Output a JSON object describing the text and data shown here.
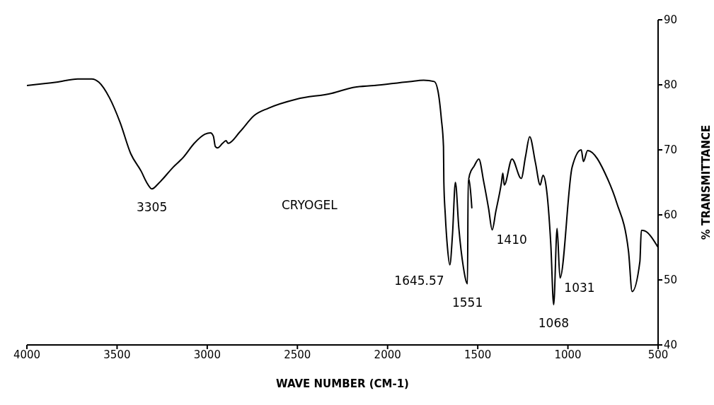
{
  "chart_data": {
    "type": "line",
    "xlabel": "WAVE NUMBER (CM-1)",
    "ylabel": "% TRANSMITTANCE",
    "xlim": [
      4000,
      500
    ],
    "xticks": [
      4000,
      3500,
      3000,
      2500,
      2000,
      1500,
      1000,
      500
    ],
    "ylim": [
      40,
      90
    ],
    "yticks": [
      40,
      50,
      60,
      70,
      80,
      90
    ],
    "grid": false,
    "legend": false,
    "marker": "none",
    "line_style": "solid",
    "series": [
      {
        "color": "#000000",
        "x": [
          4000,
          3836,
          3718,
          3640,
          3601,
          3542,
          3483,
          3424,
          3366,
          3334,
          3307,
          3268,
          3190,
          3131,
          3072,
          3013,
          2982,
          2966,
          2955,
          2943,
          2915,
          2896,
          2884,
          2818,
          2739,
          2661,
          2504,
          2309,
          2191,
          2074,
          1878,
          1800,
          1741,
          1721,
          1702,
          1690,
          1688,
          1680,
          1668,
          1655,
          1640,
          1624,
          1605,
          1580,
          1557,
          1553,
          1533,
          1550,
          1545,
          1520,
          1494,
          1467,
          1440,
          1420,
          1400,
          1369,
          1361,
          1353,
          1310,
          1259,
          1235,
          1212,
          1180,
          1154,
          1138,
          1122,
          1095,
          1079,
          1060,
          1044,
          977,
          926,
          914,
          891,
          781,
          730,
          664,
          644,
          601,
          593,
          585,
          500
        ],
        "values": [
          79.9,
          80.4,
          80.9,
          80.9,
          80.4,
          78,
          74.2,
          69.4,
          66.7,
          64.9,
          64,
          64.9,
          67.3,
          68.9,
          71,
          72.4,
          72.6,
          72.1,
          70.5,
          70.3,
          71,
          71.4,
          71,
          72.8,
          75.3,
          76.4,
          77.8,
          78.7,
          79.6,
          79.9,
          80.5,
          80.7,
          80.5,
          79.1,
          74.8,
          70.5,
          65.1,
          60,
          55,
          52.3,
          57,
          65,
          58,
          52,
          49.4,
          65.4,
          61.1,
          65.6,
          66.2,
          67.5,
          68.6,
          65.1,
          61,
          57.7,
          60.5,
          64.9,
          66.4,
          64.6,
          68.6,
          65.6,
          69,
          72,
          68,
          64.6,
          66.1,
          64.6,
          55.5,
          46.2,
          57.9,
          50.3,
          67.3,
          70,
          68.2,
          69.9,
          65.6,
          61.9,
          54.4,
          48.2,
          52.8,
          57.6,
          57.6,
          55
        ]
      }
    ],
    "annotations": [
      {
        "text": "3305",
        "x": 3307,
        "y": 64
      },
      "CRYOGEL",
      {
        "text": "1645.57",
        "x": 1655,
        "y": 52.3
      },
      {
        "text": "1551",
        "x": 1557,
        "y": 49.4
      },
      {
        "text": "1410",
        "x": 1420,
        "y": 57.7
      },
      {
        "text": "1068",
        "x": 1079,
        "y": 46.2
      },
      {
        "text": "1031",
        "x": 1044,
        "y": 50.3
      }
    ]
  }
}
